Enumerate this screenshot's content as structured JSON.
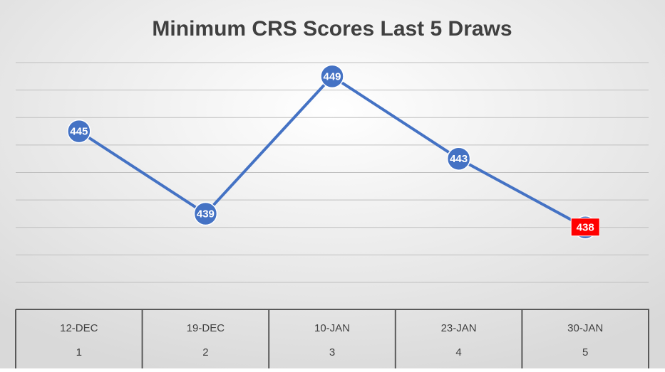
{
  "chart_data": {
    "type": "line",
    "title": "Minimum CRS Scores Last 5 Draws",
    "categories": [
      "12-DEC",
      "19-DEC",
      "10-JAN",
      "23-JAN",
      "30-JAN"
    ],
    "category_numbers": [
      "1",
      "2",
      "3",
      "4",
      "5"
    ],
    "series": [
      {
        "name": "Minimum CRS Score",
        "color": "#4472c4",
        "values": [
          445,
          439,
          449,
          443,
          438
        ]
      }
    ],
    "ylim": [
      434,
      450
    ],
    "yticks": [
      434,
      436,
      438,
      440,
      442,
      444,
      446,
      448,
      450
    ],
    "grid": true,
    "highlight": {
      "index": 4,
      "color": "#ff0000"
    }
  }
}
